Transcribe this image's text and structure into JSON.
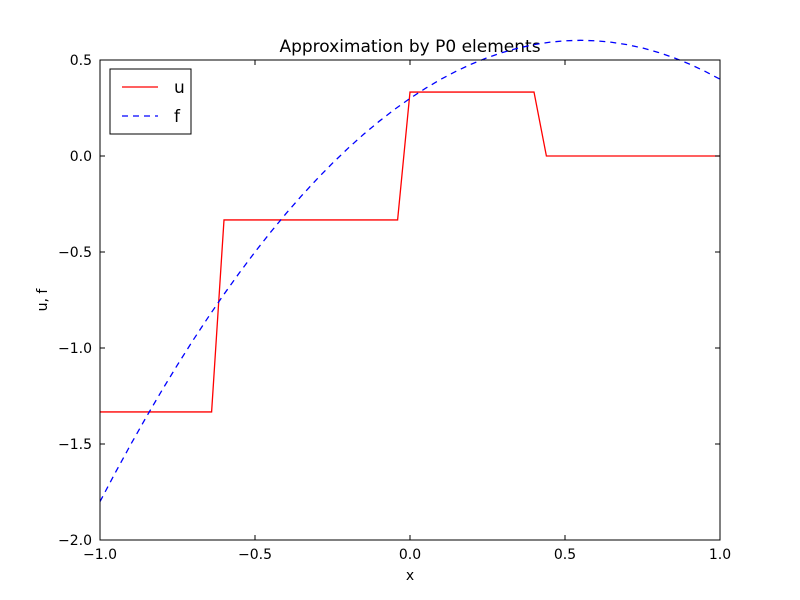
{
  "chart_data": {
    "type": "line",
    "title": "Approximation by P0 elements",
    "xlabel": "x",
    "ylabel": "u, f",
    "xlim": [
      -1.0,
      1.0
    ],
    "ylim": [
      -2.0,
      0.5
    ],
    "xticks": [
      -1.0,
      -0.5,
      0.0,
      0.5,
      1.0
    ],
    "xtick_labels": [
      "−1.0",
      "−0.5",
      "0.0",
      "0.5",
      "1.0"
    ],
    "yticks": [
      -2.0,
      -1.5,
      -1.0,
      -0.5,
      0.0,
      0.5
    ],
    "ytick_labels": [
      "−2.0",
      "−1.5",
      "−1.0",
      "−0.5",
      "0.0",
      "0.5"
    ],
    "grid": false,
    "legend_position": "top-left",
    "series": [
      {
        "name": "u",
        "color": "#ff0000",
        "style": "solid",
        "x": [
          -1.0,
          -0.64,
          -0.6,
          -0.04,
          0.0,
          0.4,
          0.44,
          1.0
        ],
        "y": [
          -1.333,
          -1.333,
          -0.333,
          -0.333,
          0.333,
          0.333,
          0.0,
          0.0
        ]
      },
      {
        "name": "f",
        "color": "#0000ff",
        "style": "dashed",
        "x": [
          -1.0,
          -0.95,
          -0.9,
          -0.85,
          -0.8,
          -0.75,
          -0.7,
          -0.65,
          -0.6,
          -0.55,
          -0.5,
          -0.45,
          -0.4,
          -0.35,
          -0.3,
          -0.25,
          -0.2,
          -0.15,
          -0.1,
          -0.05,
          0.0,
          0.05,
          0.1,
          0.15,
          0.2,
          0.25,
          0.3,
          0.35,
          0.4,
          0.45,
          0.5,
          0.55,
          0.6,
          0.65,
          0.7,
          0.75,
          0.8,
          0.85,
          0.9,
          0.95,
          1.0
        ],
        "y": [
          -1.8,
          -1.6475,
          -1.5,
          -1.3575,
          -1.22,
          -1.0875,
          -0.96,
          -0.8375,
          -0.72,
          -0.6075,
          -0.5,
          -0.3975,
          -0.3,
          -0.2075,
          -0.12,
          -0.0375,
          0.04,
          0.1125,
          0.18,
          0.2425,
          0.3,
          0.3525,
          0.4,
          0.4425,
          0.48,
          0.5125,
          0.54,
          0.5625,
          0.58,
          0.5925,
          0.6,
          0.6025,
          0.6,
          0.5925,
          0.58,
          0.5625,
          0.54,
          0.5125,
          0.48,
          0.4425,
          0.4
        ]
      }
    ]
  }
}
